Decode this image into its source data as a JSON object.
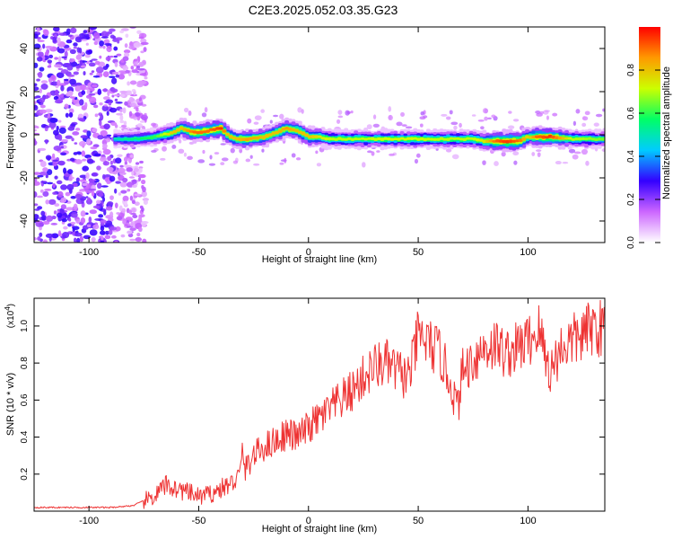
{
  "title": "C2E3.2025.052.03.35.G23",
  "chart_data": [
    {
      "type": "heatmap",
      "xlabel": "Height of straight line (km)",
      "ylabel": "Frequency (Hz)",
      "xlim": [
        -125,
        135
      ],
      "ylim": [
        -50,
        50
      ],
      "xticks": [
        -100,
        -50,
        0,
        50,
        100
      ],
      "yticks": [
        -40,
        -20,
        0,
        20,
        40
      ],
      "grid": false,
      "colorbar": {
        "label": "Normalized spectral amplitude",
        "range": [
          0,
          1
        ],
        "ticks": [
          "0.0",
          "0.2",
          "0.4",
          "0.6",
          "0.8"
        ],
        "colors": [
          "#ffffff",
          "#cc66ff",
          "#3300ff",
          "#00ccff",
          "#00ff66",
          "#ccff00",
          "#ff9900",
          "#ff0000"
        ]
      },
      "ridge": {
        "x": [
          -88,
          -80,
          -70,
          -62,
          -58,
          -52,
          -45,
          -40,
          -37,
          -33,
          -28,
          -20,
          -15,
          -10,
          -5,
          0,
          5,
          10,
          20,
          40,
          60,
          75,
          80,
          85,
          90,
          96,
          100,
          104,
          110,
          120,
          135
        ],
        "y": [
          -2,
          -2,
          -1,
          1,
          3,
          1,
          2,
          3,
          0,
          -2,
          -2,
          -1,
          1,
          3,
          2,
          -1,
          -1,
          -2,
          -2,
          -2,
          -2,
          -2,
          -3,
          -3,
          -3,
          -3,
          -1,
          -1,
          -1,
          -2,
          -2
        ],
        "amplitude": [
          0.5,
          0.55,
          0.6,
          0.8,
          0.8,
          0.9,
          0.9,
          0.95,
          0.8,
          0.8,
          0.85,
          0.8,
          0.8,
          0.85,
          0.8,
          0.8,
          0.75,
          0.7,
          0.7,
          0.72,
          0.7,
          0.7,
          0.75,
          0.9,
          0.95,
          0.9,
          0.75,
          0.9,
          0.95,
          0.7,
          0.65
        ]
      },
      "noise_region_x": [
        -125,
        -78
      ]
    },
    {
      "type": "line",
      "xlabel": "Height of straight line (km)",
      "ylabel": "SNR (10 * v/v)",
      "yscale_label": "(x10",
      "yscale_exp": "4",
      "yscale_close": ")",
      "xlim": [
        -125,
        135
      ],
      "ylim": [
        0,
        1.15
      ],
      "xticks": [
        -100,
        -50,
        0,
        50,
        100
      ],
      "yticks": [
        "0.2",
        "0.4",
        "0.6",
        "0.8",
        "1.0"
      ],
      "grid": false,
      "color": "#ee3333",
      "series": [
        {
          "x": [
            -125,
            -110,
            -90,
            -80,
            -70,
            -65,
            -60,
            -55,
            -50,
            -45,
            -40,
            -35,
            -31,
            -30,
            -29,
            -25,
            -20,
            -15,
            -10,
            -5,
            0,
            5,
            10,
            15,
            20,
            25,
            30,
            35,
            40,
            45,
            47,
            50,
            55,
            60,
            65,
            68,
            70,
            75,
            80,
            85,
            90,
            95,
            100,
            103,
            105,
            110,
            115,
            120,
            125,
            130,
            135
          ],
          "y": [
            0.02,
            0.02,
            0.02,
            0.03,
            0.08,
            0.14,
            0.12,
            0.1,
            0.08,
            0.09,
            0.12,
            0.15,
            0.2,
            0.35,
            0.22,
            0.3,
            0.35,
            0.38,
            0.42,
            0.4,
            0.45,
            0.5,
            0.55,
            0.6,
            0.65,
            0.72,
            0.78,
            0.8,
            0.76,
            0.72,
            0.78,
            0.95,
            0.9,
            0.85,
            0.68,
            0.55,
            0.75,
            0.82,
            0.88,
            0.9,
            0.85,
            0.88,
            0.92,
            0.95,
            0.98,
            0.75,
            0.88,
            0.92,
            0.95,
            1.0,
            0.98
          ]
        }
      ]
    }
  ]
}
